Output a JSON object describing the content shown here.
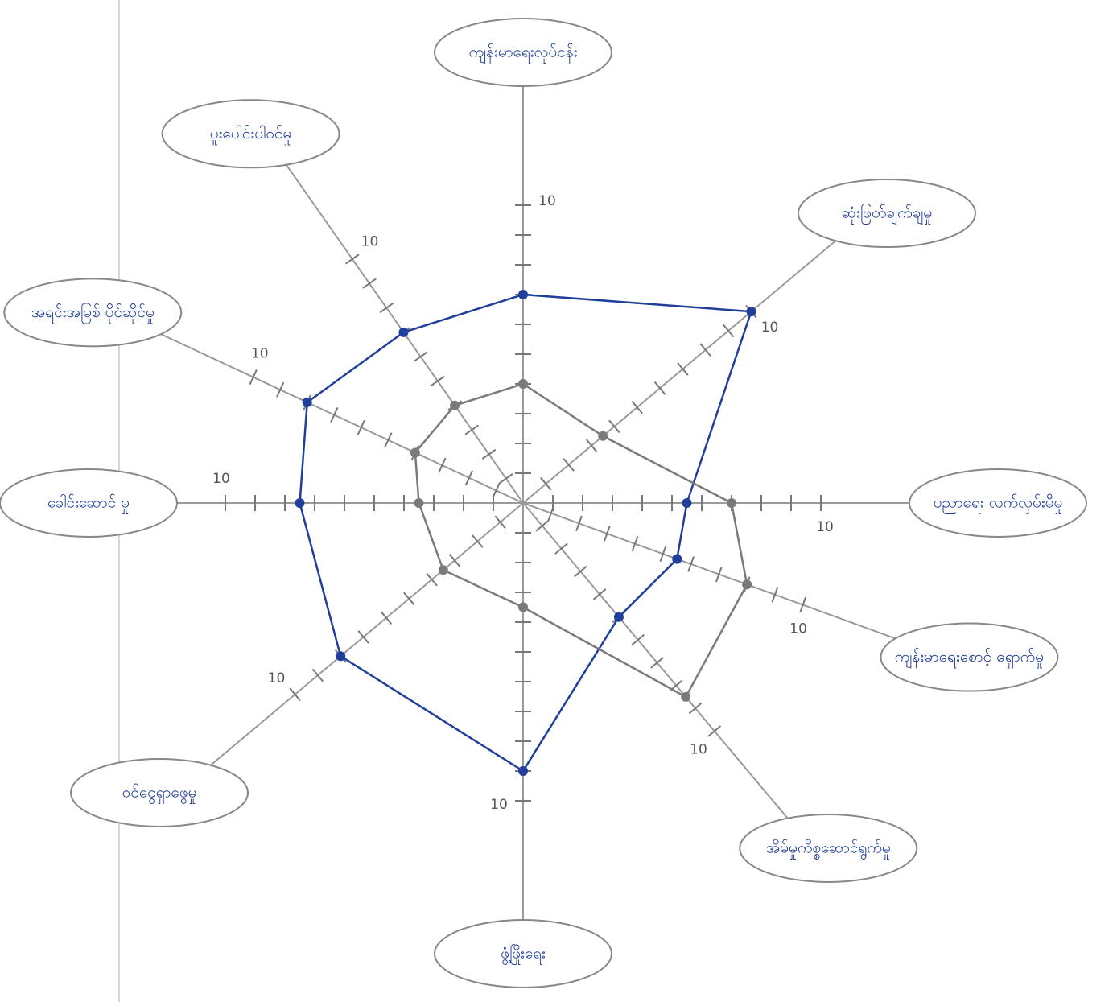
{
  "chart_data": {
    "type": "radar",
    "categories": [
      "ကျန်းမာရေးလုပ်ငန်း",
      "ဆုံးဖြတ်ချက်ချမှု",
      "ပညာရေး လက်လှမ်းမီမှု",
      "ကျန်းမာရေးစောင့် ရှောက်မှု",
      "အိမ်မှုကိစ္စဆောင်ရွက်မှု",
      "ဖွံ့ဖြိုးရေး",
      "ဝင်ငွေရှာဖွေမှု",
      "ခေါင်းဆောင် မှု",
      "အရင်းအမြစ် ပိုင်ဆိုင်မှု",
      "ပူးပေါင်းပါဝင်မှု"
    ],
    "series": [
      {
        "color": "#1f3f9a",
        "values": [
          7,
          10,
          5.5,
          5.5,
          5,
          9,
          8,
          7.5,
          8,
          7
        ]
      },
      {
        "color": "#7a7a7a",
        "values": [
          4,
          3.5,
          7,
          8,
          8.5,
          3.5,
          3.5,
          3.5,
          4,
          4
        ]
      }
    ],
    "rlim": [
      0,
      10
    ],
    "rticks": [
      1,
      2,
      3,
      4,
      5,
      6,
      7,
      8,
      9,
      10
    ]
  }
}
